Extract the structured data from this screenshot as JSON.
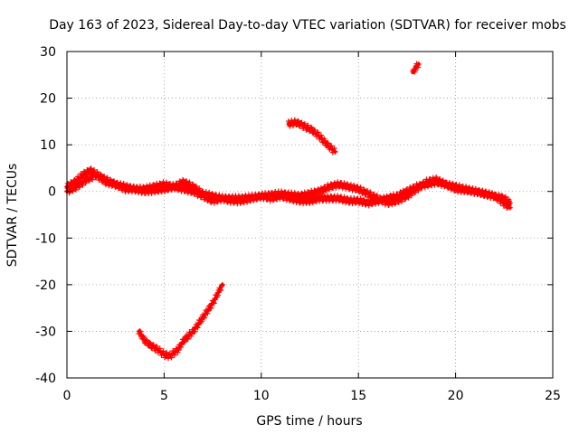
{
  "chart_data": {
    "type": "scatter",
    "title": "Day 163 of 2023, Sidereal Day-to-day VTEC variation (SDTVAR) for receiver mobs",
    "xlabel": "GPS time / hours",
    "ylabel": "SDTVAR / TECUs",
    "xlim": [
      0,
      25
    ],
    "ylim": [
      -40,
      30
    ],
    "xticks": [
      0,
      5,
      10,
      15,
      20,
      25
    ],
    "yticks": [
      -40,
      -30,
      -20,
      -10,
      0,
      10,
      20,
      30
    ],
    "grid": true,
    "marker": "+",
    "color": "#ff0000",
    "series": [
      {
        "name": "main-trace-1",
        "x": [
          0.0,
          0.4,
          0.8,
          1.2,
          1.6,
          2.0,
          2.5,
          3.0,
          3.5,
          4.0,
          4.5,
          5.0,
          5.5,
          6.0,
          6.5,
          7.0,
          7.5,
          8.0,
          8.5,
          9.0,
          9.5,
          10.0,
          10.5,
          11.0,
          11.5,
          12.0,
          12.5,
          13.0,
          13.5,
          14.0,
          14.5,
          15.0,
          15.5,
          16.0,
          16.5,
          17.0,
          17.5,
          18.0,
          18.5,
          19.0,
          19.5,
          20.0,
          20.5,
          21.0,
          21.5,
          22.0,
          22.5,
          22.8
        ],
        "y": [
          1.0,
          2.0,
          3.5,
          4.5,
          3.5,
          2.5,
          1.5,
          0.5,
          0.5,
          0.5,
          1.0,
          1.5,
          1.0,
          0.5,
          0.0,
          -1.0,
          -2.0,
          -1.5,
          -2.0,
          -2.0,
          -1.5,
          -1.0,
          -1.5,
          -1.0,
          -1.5,
          -2.0,
          -2.0,
          -1.5,
          -1.5,
          -1.5,
          -2.0,
          -2.0,
          -2.5,
          -2.0,
          -1.5,
          -1.0,
          0.0,
          1.0,
          1.5,
          2.0,
          1.5,
          1.0,
          0.5,
          0.0,
          -0.5,
          -1.0,
          -1.5,
          -2.5
        ]
      },
      {
        "name": "main-trace-2",
        "x": [
          0.0,
          0.5,
          1.0,
          1.5,
          2.0,
          3.0,
          4.0,
          5.0,
          5.5,
          6.0,
          6.5,
          7.0,
          8.0,
          9.0,
          10.0,
          11.0,
          12.0,
          12.5,
          13.0,
          13.5,
          14.0,
          14.5,
          15.0,
          15.5,
          16.0,
          16.5,
          17.0,
          17.5,
          18.0,
          18.5,
          19.0,
          19.5,
          20.0,
          21.0,
          22.0,
          22.8
        ],
        "y": [
          0.0,
          1.0,
          2.5,
          3.5,
          2.0,
          1.0,
          0.0,
          0.5,
          1.0,
          2.0,
          1.0,
          -0.5,
          -1.5,
          -1.5,
          -1.0,
          -0.5,
          -1.0,
          -0.5,
          0.0,
          1.0,
          1.5,
          1.0,
          0.5,
          -0.5,
          -1.5,
          -2.5,
          -2.0,
          -1.0,
          0.5,
          2.0,
          2.5,
          1.5,
          0.5,
          0.0,
          -1.0,
          -3.5
        ]
      },
      {
        "name": "upper-trace",
        "x": [
          11.4,
          11.8,
          12.2,
          12.6,
          13.0,
          13.4,
          13.8
        ],
        "y": [
          14.5,
          14.8,
          14.0,
          13.2,
          11.8,
          10.0,
          8.5
        ]
      },
      {
        "name": "top-trace",
        "x": [
          17.8,
          17.9,
          18.0,
          18.1
        ],
        "y": [
          25.5,
          26.2,
          26.8,
          27.3
        ]
      },
      {
        "name": "lower-trace",
        "x": [
          3.7,
          4.0,
          4.3,
          4.7,
          5.0,
          5.3,
          5.7,
          6.0,
          6.5,
          7.0,
          7.5,
          8.0
        ],
        "y": [
          -30.0,
          -32.0,
          -33.0,
          -34.0,
          -35.0,
          -35.3,
          -34.0,
          -32.0,
          -30.0,
          -27.0,
          -24.0,
          -20.0
        ]
      }
    ]
  }
}
